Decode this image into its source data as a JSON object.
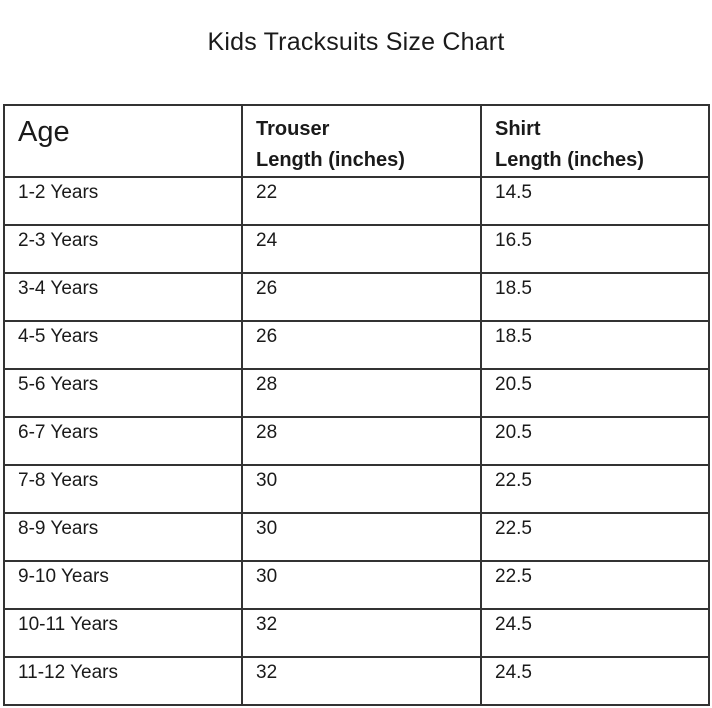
{
  "title": "Kids  Tracksuits Size Chart",
  "table": {
    "headers": {
      "age": "Age",
      "trouser_line1": "Trouser",
      "trouser_line2": "Length  (inches)",
      "shirt_line1": "Shirt",
      "shirt_line2": "Length  (inches)"
    },
    "rows": [
      {
        "age": "1-2 Years",
        "trouser": "22",
        "shirt": "14.5"
      },
      {
        "age": "2-3 Years",
        "trouser": "24",
        "shirt": "16.5"
      },
      {
        "age": "3-4 Years",
        "trouser": "26",
        "shirt": "18.5"
      },
      {
        "age": "4-5 Years",
        "trouser": "26",
        "shirt": "18.5"
      },
      {
        "age": "5-6 Years",
        "trouser": "28",
        "shirt": "20.5"
      },
      {
        "age": "6-7 Years",
        "trouser": "28",
        "shirt": "20.5"
      },
      {
        "age": "7-8 Years",
        "trouser": "30",
        "shirt": "22.5"
      },
      {
        "age": "8-9 Years",
        "trouser": "30",
        "shirt": "22.5"
      },
      {
        "age": "9-10 Years",
        "trouser": "30",
        "shirt": "22.5"
      },
      {
        "age": "10-11 Years",
        "trouser": "32",
        "shirt": "24.5"
      },
      {
        "age": "11-12 Years",
        "trouser": "32",
        "shirt": "24.5"
      }
    ]
  }
}
